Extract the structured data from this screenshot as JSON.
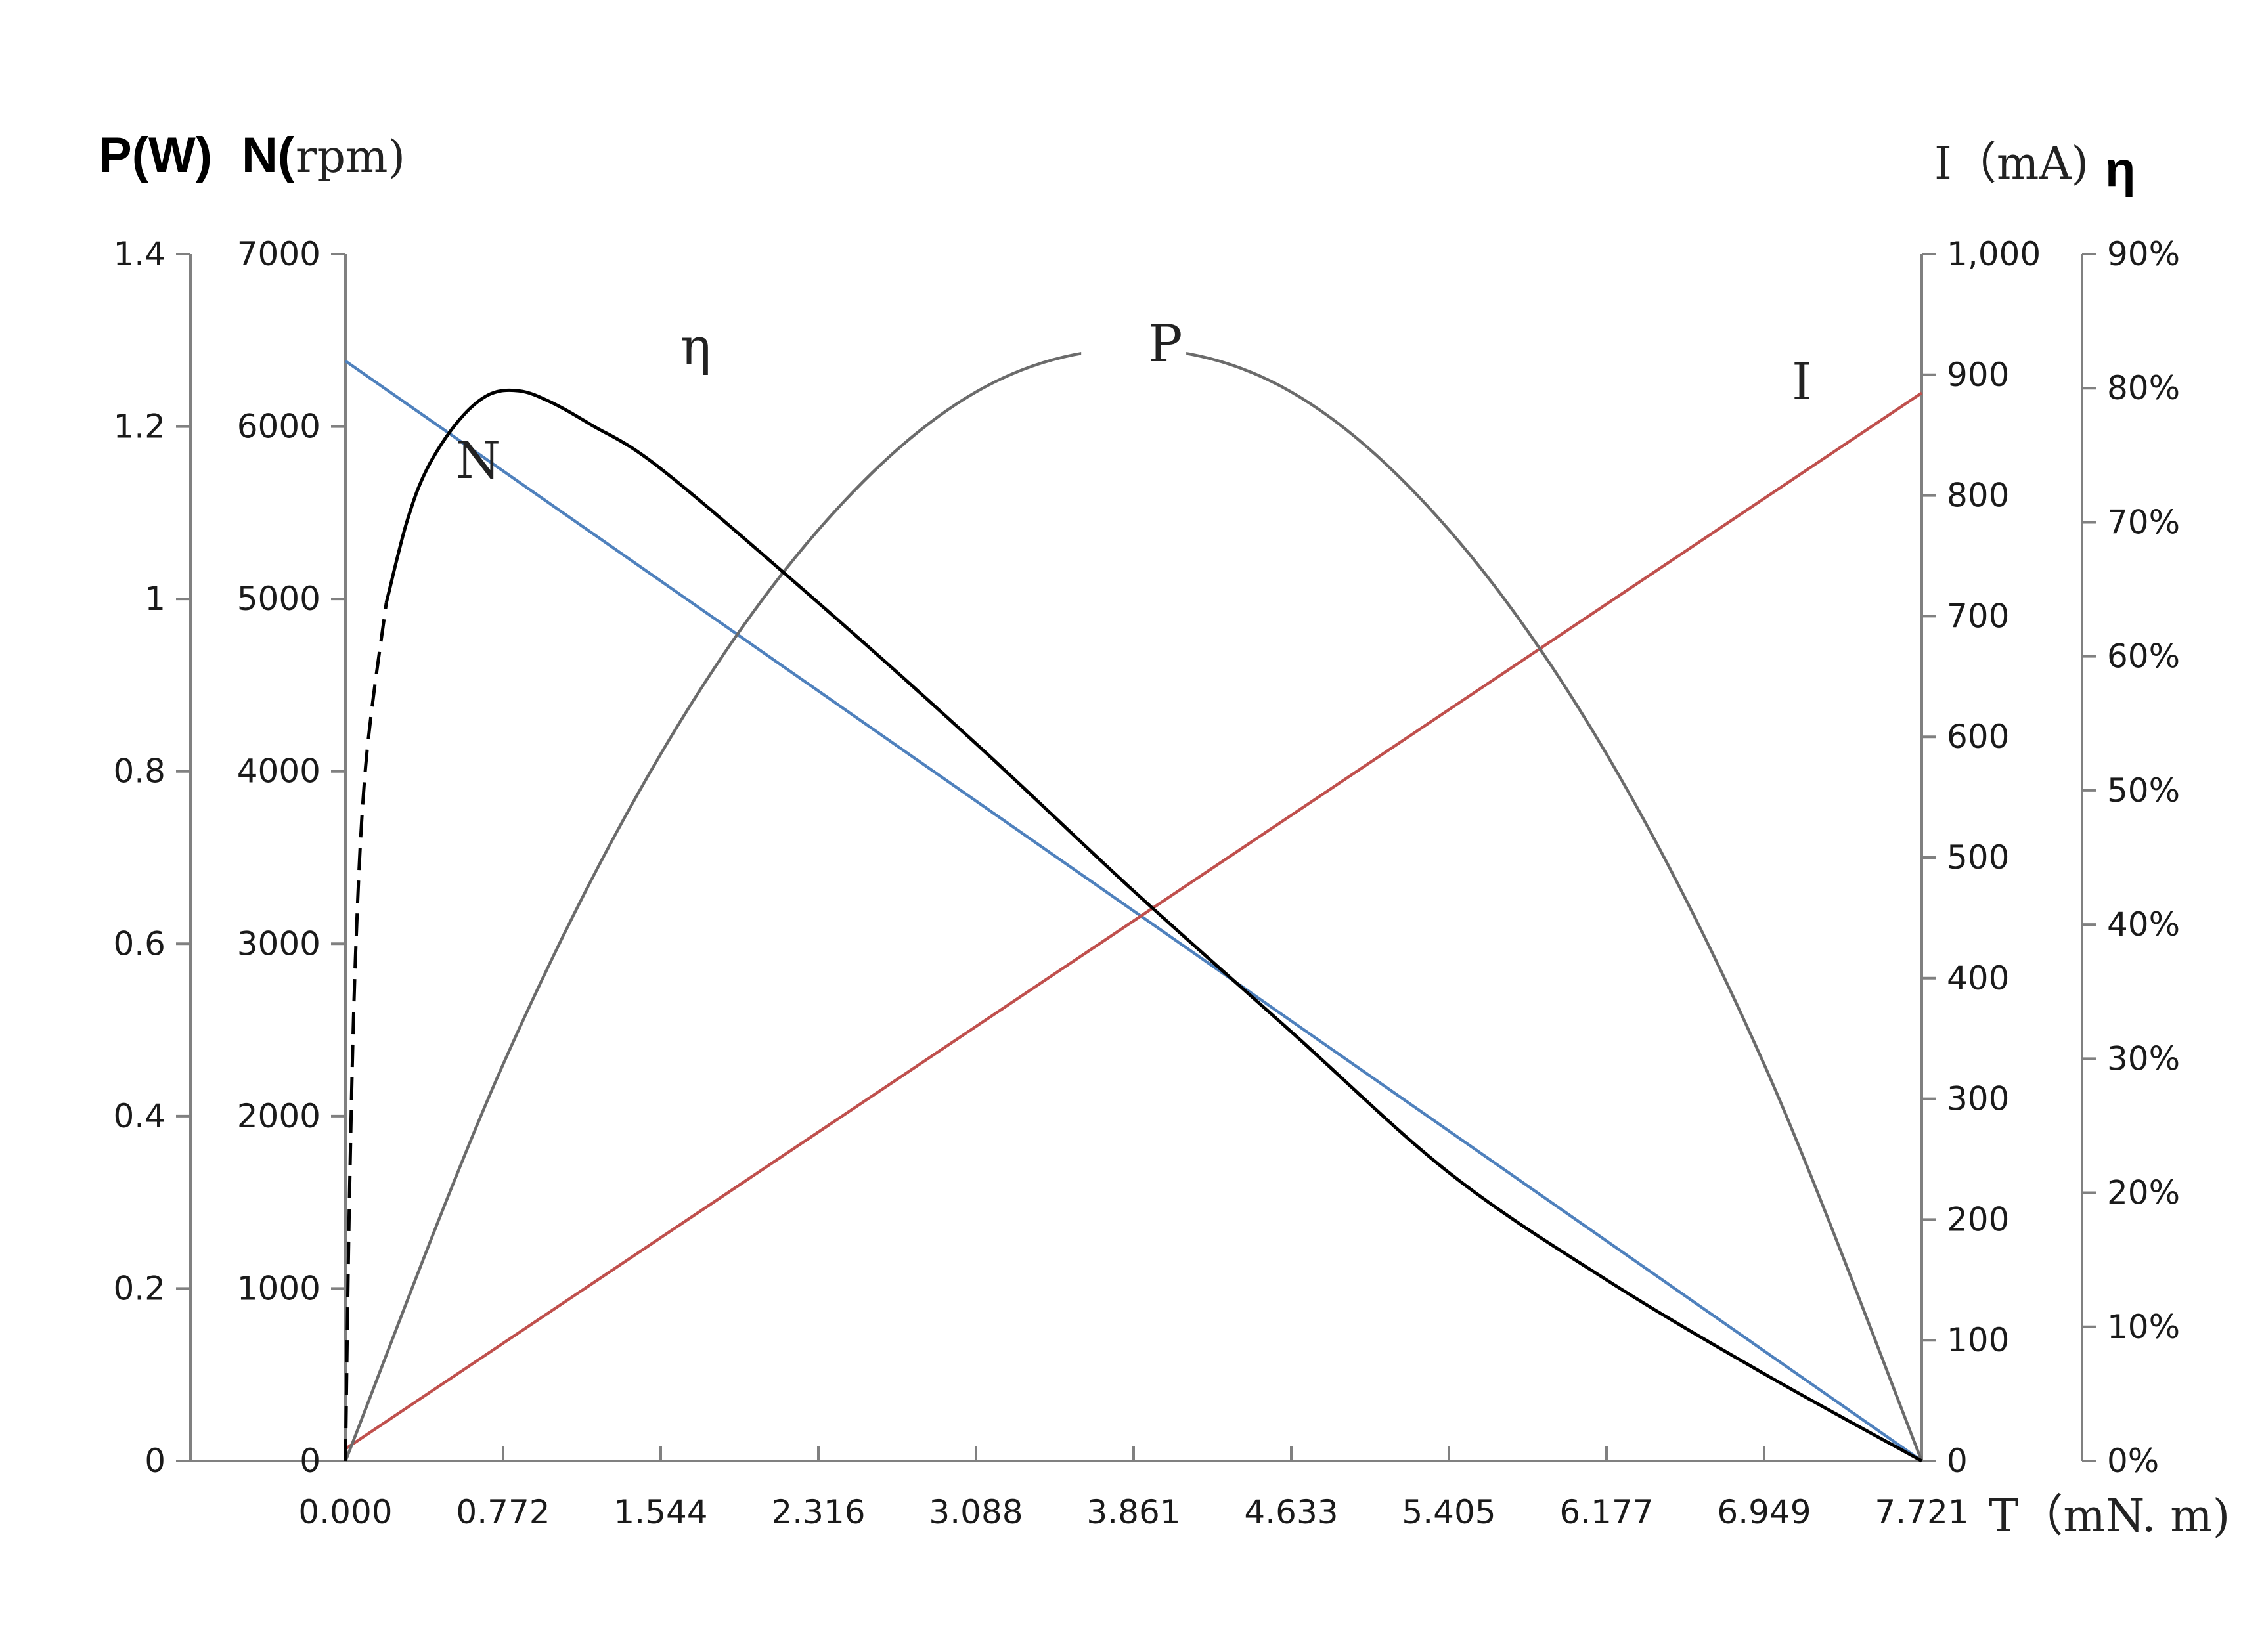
{
  "chart_data": {
    "type": "line",
    "title": "",
    "x": {
      "label": "T（mN. m)",
      "ticks": [
        "0.000",
        "0.772",
        "1.544",
        "2.316",
        "3.088",
        "3.861",
        "4.633",
        "5.405",
        "6.177",
        "6.949",
        "7.721"
      ],
      "range": [
        0,
        7.721
      ]
    },
    "axes": {
      "power": {
        "unit_prefix": "P(W)",
        "ticks": [
          "0",
          "0.2",
          "0.4",
          "0.6",
          "0.8",
          "1",
          "1.2",
          "1.4"
        ],
        "range": [
          0,
          1.4
        ],
        "position": "left-outer"
      },
      "speed": {
        "unit_prefix": "N(",
        "unit_suffix": "rpm)",
        "ticks": [
          "0",
          "1000",
          "2000",
          "3000",
          "4000",
          "5000",
          "6000",
          "7000"
        ],
        "range": [
          0,
          7000
        ],
        "position": "left-inner"
      },
      "current": {
        "label": "I（mA)",
        "ticks": [
          "0",
          "100",
          "200",
          "300",
          "400",
          "500",
          "600",
          "700",
          "800",
          "900",
          "1,000"
        ],
        "range": [
          0,
          1000
        ],
        "position": "right-inner"
      },
      "efficiency": {
        "label": "η",
        "ticks": [
          "0%",
          "10%",
          "20%",
          "30%",
          "40%",
          "50%",
          "60%",
          "70%",
          "80%",
          "90%"
        ],
        "range": [
          0,
          0.9
        ],
        "position": "right-outer"
      }
    },
    "series": [
      {
        "name": "N",
        "axis": "speed",
        "color": "#4f81bd",
        "points": [
          [
            0,
            6380
          ],
          [
            7.721,
            0
          ]
        ]
      },
      {
        "name": "I",
        "axis": "current",
        "color": "#c0504d",
        "points": [
          [
            0,
            10
          ],
          [
            7.721,
            885
          ]
        ]
      },
      {
        "name": "P",
        "axis": "power",
        "color": "#6b6b6b",
        "peak": [
          3.861,
          1.29
        ],
        "points": [
          [
            0,
            0
          ],
          [
            0.772,
            0.46
          ],
          [
            1.544,
            0.82
          ],
          [
            2.316,
            1.08
          ],
          [
            3.088,
            1.24
          ],
          [
            3.861,
            1.29
          ],
          [
            4.633,
            1.24
          ],
          [
            5.405,
            1.08
          ],
          [
            6.177,
            0.82
          ],
          [
            6.949,
            0.46
          ],
          [
            7.721,
            0
          ]
        ]
      },
      {
        "name": "η",
        "axis": "efficiency",
        "color": "#000000",
        "points": [
          [
            0,
            0
          ],
          [
            0.02,
            0.2
          ],
          [
            0.05,
            0.38
          ],
          [
            0.1,
            0.52
          ],
          [
            0.2,
            0.64
          ],
          [
            0.3,
            0.7
          ],
          [
            0.4,
            0.74
          ],
          [
            0.55,
            0.775
          ],
          [
            0.7,
            0.795
          ],
          [
            0.85,
            0.798
          ],
          [
            1.0,
            0.79
          ],
          [
            1.2,
            0.773
          ],
          [
            1.544,
            0.74
          ],
          [
            2.316,
            0.64
          ],
          [
            3.088,
            0.535
          ],
          [
            3.861,
            0.425
          ],
          [
            4.633,
            0.32
          ],
          [
            5.405,
            0.215
          ],
          [
            6.177,
            0.135
          ],
          [
            6.949,
            0.065
          ],
          [
            7.721,
            0
          ]
        ],
        "dashed_until_x": 0.2
      }
    ],
    "grid": false,
    "legend": "none"
  }
}
